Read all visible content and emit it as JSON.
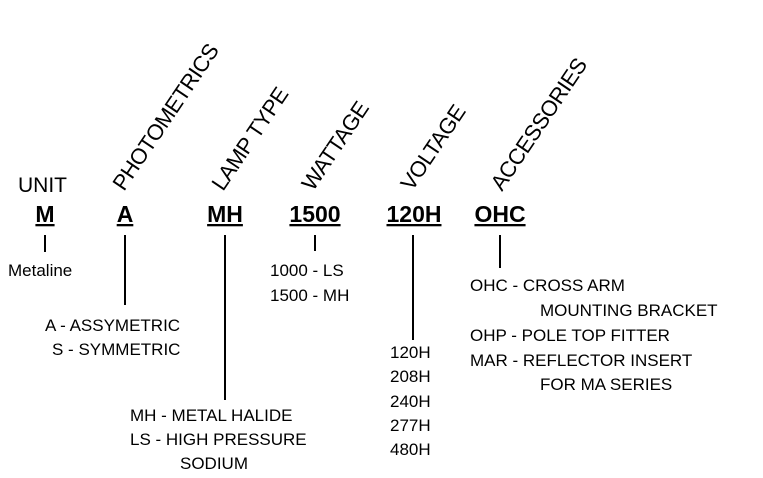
{
  "unit_label": "UNIT",
  "columns": [
    {
      "code": "M",
      "options": [
        "Metaline"
      ]
    },
    {
      "header": "PHOTOMETRICS",
      "code": "A",
      "options": [
        "A - ASSYMETRIC",
        "S - SYMMETRIC"
      ]
    },
    {
      "header": "LAMP TYPE",
      "code": "MH",
      "options": [
        "MH - METAL HALIDE",
        "LS - HIGH PRESSURE",
        "SODIUM"
      ]
    },
    {
      "header": "WATTAGE",
      "code": "1500",
      "options": [
        "1000 - LS",
        "1500 - MH"
      ]
    },
    {
      "header": "VOLTAGE",
      "code": "120H",
      "options": [
        "120H",
        "208H",
        "240H",
        "277H",
        "480H"
      ]
    },
    {
      "header": "ACCESSORIES",
      "code": "OHC",
      "options": [
        "OHC - CROSS ARM",
        "MOUNTING BRACKET",
        "OHP - POLE TOP FITTER",
        "MAR - REFLECTOR INSERT",
        "FOR MA SERIES"
      ]
    }
  ]
}
